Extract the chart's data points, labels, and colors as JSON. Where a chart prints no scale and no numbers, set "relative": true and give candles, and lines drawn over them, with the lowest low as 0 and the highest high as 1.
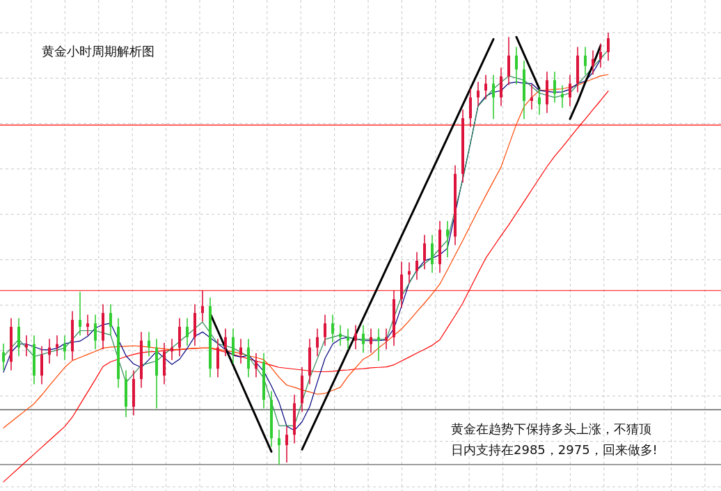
{
  "chart_data": {
    "type": "candlestick",
    "relative": true,
    "grid": true,
    "title": "黄金小时周期解析图",
    "annotations": [
      "黄金在趋势下保持多头上涨，不猜顶",
      "日内支持在2985，2975，回来做多!"
    ],
    "categories": [
      null,
      null,
      null,
      null,
      null,
      null,
      null,
      null,
      null,
      null,
      null,
      null,
      null,
      null,
      null,
      null,
      null,
      null,
      null,
      null,
      null,
      null,
      null,
      null,
      null,
      null,
      null,
      null,
      null,
      null,
      null,
      null,
      null,
      null,
      null,
      null,
      null,
      null,
      null,
      null,
      null,
      null,
      null,
      null,
      null,
      null,
      null,
      null,
      null,
      null,
      null,
      null,
      null,
      null,
      null,
      null,
      null,
      null,
      null,
      null,
      null,
      null,
      null,
      null,
      null,
      null,
      null,
      null,
      null,
      null,
      null,
      null,
      null,
      null,
      null,
      null,
      null,
      null,
      null,
      null
    ],
    "ohlc": [
      [
        0.26,
        0.28,
        0.218,
        0.238
      ],
      [
        0.238,
        0.339,
        0.218,
        0.319
      ],
      [
        0.319,
        0.339,
        0.251,
        0.271
      ],
      [
        0.271,
        0.299,
        0.251,
        0.279
      ],
      [
        0.279,
        0.299,
        0.186,
        0.206
      ],
      [
        0.206,
        0.274,
        0.186,
        0.254
      ],
      [
        0.254,
        0.291,
        0.234,
        0.271
      ],
      [
        0.271,
        0.299,
        0.251,
        0.279
      ],
      [
        0.279,
        0.299,
        0.242,
        0.262
      ],
      [
        0.262,
        0.355,
        0.242,
        0.335
      ],
      [
        0.335,
        0.4,
        0.299,
        0.319
      ],
      [
        0.319,
        0.347,
        0.299,
        0.327
      ],
      [
        0.327,
        0.347,
        0.267,
        0.287
      ],
      [
        0.287,
        0.371,
        0.267,
        0.351
      ],
      [
        0.351,
        0.371,
        0.299,
        0.319
      ],
      [
        0.319,
        0.339,
        0.178,
        0.198
      ],
      [
        0.198,
        0.218,
        0.11,
        0.134
      ],
      [
        0.134,
        0.218,
        0.114,
        0.198
      ],
      [
        0.198,
        0.307,
        0.178,
        0.287
      ],
      [
        0.287,
        0.307,
        0.251,
        0.271
      ],
      [
        0.271,
        0.291,
        0.13,
        0.206
      ],
      [
        0.206,
        0.282,
        0.186,
        0.262
      ],
      [
        0.262,
        0.291,
        0.242,
        0.271
      ],
      [
        0.271,
        0.339,
        0.251,
        0.319
      ],
      [
        0.319,
        0.339,
        0.275,
        0.295
      ],
      [
        0.295,
        0.371,
        0.275,
        0.351
      ],
      [
        0.351,
        0.403,
        0.331,
        0.367
      ],
      [
        0.367,
        0.387,
        0.202,
        0.222
      ],
      [
        0.222,
        0.291,
        0.202,
        0.271
      ],
      [
        0.271,
        0.315,
        0.251,
        0.295
      ],
      [
        0.295,
        0.315,
        0.234,
        0.254
      ],
      [
        0.254,
        0.291,
        0.234,
        0.271
      ],
      [
        0.271,
        0.291,
        0.202,
        0.222
      ],
      [
        0.222,
        0.258,
        0.202,
        0.238
      ],
      [
        0.238,
        0.258,
        0.13,
        0.15
      ],
      [
        0.15,
        0.17,
        0.041,
        0.061
      ],
      [
        0.061,
        0.081,
        0,
        0.045
      ],
      [
        0.045,
        0.089,
        0.005,
        0.069
      ],
      [
        0.069,
        0.162,
        0.049,
        0.142
      ],
      [
        0.142,
        0.226,
        0.122,
        0.206
      ],
      [
        0.206,
        0.291,
        0.186,
        0.271
      ],
      [
        0.271,
        0.315,
        0.251,
        0.295
      ],
      [
        0.295,
        0.347,
        0.275,
        0.327
      ],
      [
        0.327,
        0.347,
        0.283,
        0.303
      ],
      [
        0.303,
        0.323,
        0.275,
        0.295
      ],
      [
        0.295,
        0.315,
        0.267,
        0.287
      ],
      [
        0.287,
        0.323,
        0.267,
        0.303
      ],
      [
        0.303,
        0.323,
        0.259,
        0.279
      ],
      [
        0.279,
        0.315,
        0.259,
        0.295
      ],
      [
        0.295,
        0.315,
        0.24,
        0.287
      ],
      [
        0.287,
        0.315,
        0.267,
        0.295
      ],
      [
        0.295,
        0.403,
        0.275,
        0.383
      ],
      [
        0.383,
        0.47,
        0.363,
        0.44
      ],
      [
        0.44,
        0.468,
        0.42,
        0.448
      ],
      [
        0.448,
        0.492,
        0.428,
        0.472
      ],
      [
        0.472,
        0.532,
        0.452,
        0.512
      ],
      [
        0.512,
        0.532,
        0.444,
        0.464
      ],
      [
        0.464,
        0.564,
        0.444,
        0.544
      ],
      [
        0.544,
        0.564,
        0.48,
        0.528
      ],
      [
        0.528,
        0.693,
        0.508,
        0.673
      ],
      [
        0.673,
        0.822,
        0.653,
        0.802
      ],
      [
        0.802,
        0.87,
        0.782,
        0.85
      ],
      [
        0.85,
        0.886,
        0.83,
        0.866
      ],
      [
        0.866,
        0.902,
        0.846,
        0.882
      ],
      [
        0.882,
        0.902,
        0.8,
        0.85
      ],
      [
        0.85,
        0.919,
        0.83,
        0.899
      ],
      [
        0.899,
        0.99,
        0.879,
        0.947
      ],
      [
        0.947,
        0.967,
        0.88,
        0.915
      ],
      [
        0.915,
        0.935,
        0.8,
        0.842
      ],
      [
        0.842,
        0.88,
        0.822,
        0.85
      ],
      [
        0.85,
        0.87,
        0.81,
        0.834
      ],
      [
        0.834,
        0.91,
        0.814,
        0.89
      ],
      [
        0.89,
        0.91,
        0.838,
        0.858
      ],
      [
        0.858,
        0.878,
        0.826,
        0.85
      ],
      [
        0.85,
        0.902,
        0.83,
        0.882
      ],
      [
        0.882,
        0.967,
        0.862,
        0.947
      ],
      [
        0.947,
        0.967,
        0.903,
        0.923
      ],
      [
        0.923,
        0.959,
        0.903,
        0.939
      ],
      [
        0.939,
        0.975,
        0.919,
        0.955
      ],
      [
        0.955,
        1,
        0.935,
        0.987
      ]
    ],
    "colors": [
      "#32cd32",
      "#dc143c",
      "#32cd32",
      "#dc143c",
      "#32cd32",
      "#dc143c",
      "#dc143c",
      "#dc143c",
      "#32cd32",
      "#dc143c",
      "#32cd32",
      "#dc143c",
      "#32cd32",
      "#dc143c",
      "#32cd32",
      "#32cd32",
      "#32cd32",
      "#dc143c",
      "#dc143c",
      "#32cd32",
      "#32cd32",
      "#dc143c",
      "#dc143c",
      "#dc143c",
      "#32cd32",
      "#dc143c",
      "#dc143c",
      "#32cd32",
      "#dc143c",
      "#dc143c",
      "#32cd32",
      "#dc143c",
      "#32cd32",
      "#dc143c",
      "#32cd32",
      "#32cd32",
      "#32cd32",
      "#dc143c",
      "#dc143c",
      "#dc143c",
      "#dc143c",
      "#dc143c",
      "#dc143c",
      "#32cd32",
      "#32cd32",
      "#32cd32",
      "#dc143c",
      "#32cd32",
      "#dc143c",
      "#32cd32",
      "#dc143c",
      "#dc143c",
      "#dc143c",
      "#dc143c",
      "#dc143c",
      "#dc143c",
      "#32cd32",
      "#dc143c",
      "#32cd32",
      "#dc143c",
      "#dc143c",
      "#dc143c",
      "#dc143c",
      "#dc143c",
      "#32cd32",
      "#dc143c",
      "#dc143c",
      "#32cd32",
      "#32cd32",
      "#dc143c",
      "#32cd32",
      "#dc143c",
      "#32cd32",
      "#32cd32",
      "#dc143c",
      "#dc143c",
      "#32cd32",
      "#dc143c",
      "#dc143c",
      "#dc143c"
    ],
    "series": [
      {
        "type": "line",
        "color": "#ff0000",
        "values": [
          -0.04,
          -0.024,
          -0.008,
          0.008,
          0.024,
          0.04,
          0.056,
          0.072,
          0.088,
          0.11,
          0.139,
          0.168,
          0.197,
          0.227,
          0.238,
          0.244,
          0.25,
          0.255,
          0.259,
          0.261,
          0.262,
          0.264,
          0.265,
          0.266,
          0.268,
          0.269,
          0.27,
          0.27,
          0.265,
          0.26,
          0.255,
          0.25,
          0.245,
          0.24,
          0.235,
          0.23,
          0.225,
          0.223,
          0.221,
          0.219,
          0.217,
          0.215,
          0.215,
          0.216,
          0.218,
          0.219,
          0.221,
          0.222,
          0.224,
          0.225,
          0.226,
          0.231,
          0.24,
          0.249,
          0.258,
          0.267,
          0.276,
          0.289,
          0.317,
          0.345,
          0.374,
          0.409,
          0.444,
          0.478,
          0.504,
          0.53,
          0.555,
          0.582,
          0.609,
          0.636,
          0.663,
          0.69,
          0.714,
          0.735,
          0.757,
          0.779,
          0.8,
          0.822,
          0.843,
          0.865
        ]
      },
      {
        "type": "line",
        "color": "#ff4500",
        "values": [
          0.085,
          0.099,
          0.113,
          0.127,
          0.141,
          0.161,
          0.183,
          0.204,
          0.225,
          0.241,
          0.248,
          0.255,
          0.262,
          0.27,
          0.272,
          0.273,
          0.274,
          0.275,
          0.274,
          0.272,
          0.27,
          0.268,
          0.266,
          0.267,
          0.268,
          0.269,
          0.27,
          0.27,
          0.267,
          0.264,
          0.261,
          0.257,
          0.252,
          0.248,
          0.243,
          0.224,
          0.202,
          0.184,
          0.179,
          0.173,
          0.168,
          0.163,
          0.165,
          0.172,
          0.179,
          0.204,
          0.224,
          0.244,
          0.254,
          0.27,
          0.284,
          0.299,
          0.314,
          0.333,
          0.354,
          0.374,
          0.395,
          0.418,
          0.451,
          0.485,
          0.519,
          0.554,
          0.589,
          0.623,
          0.656,
          0.689,
          0.739,
          0.788,
          0.829,
          0.85,
          0.866,
          0.867,
          0.869,
          0.87,
          0.874,
          0.878,
          0.886,
          0.893,
          0.9,
          0.903
        ]
      },
      {
        "type": "line",
        "color": "#000080",
        "values": [
          0.214,
          0.26,
          0.279,
          0.279,
          0.273,
          0.266,
          0.266,
          0.269,
          0.28,
          0.283,
          0.286,
          0.297,
          0.316,
          0.324,
          0.327,
          null,
          0.252,
          0.233,
          0.225,
          0.243,
          0.262,
          0.247,
          0.232,
          0.244,
          0.269,
          0.297,
          0.307,
          0.294,
          0.28,
          0.266,
          0.253,
          0.249,
          0.253,
          0.236,
          0.216,
          0.182,
          0.144,
          0.089,
          0.079,
          0.099,
          0.134,
          0.191,
          0.246,
          0.279,
          0.291,
          0.295,
          0.291,
          0.287,
          0.287,
          0.287,
          0.289,
          0.315,
          0.367,
          0.421,
          0.45,
          0.472,
          0.478,
          0.486,
          0.501,
          null,
          null,
          0.744,
          0.831,
          0.853,
          0.862,
          0.866,
          0.883,
          0.886,
          0.883,
          0.882,
          0.866,
          0.864,
          0.862,
          0.863,
          0.869,
          0.882,
          0.888,
          0.908,
          0.938,
          null
        ]
      },
      {
        "type": "line",
        "color": "#2e8b57",
        "values": [
          0.25,
          0.27,
          0.29,
          0.27,
          0.25,
          0.255,
          0.26,
          0.265,
          0.27,
          0.29,
          0.31,
          0.31,
          0.31,
          0.305,
          0.3,
          null,
          0.19,
          0.21,
          0.23,
          0.235,
          0.24,
          0.255,
          0.27,
          0.285,
          0.3,
          0.315,
          0.33,
          0.305,
          0.28,
          0.275,
          0.27,
          0.26,
          0.25,
          0.225,
          0.2,
          0.145,
          0.09,
          0.09,
          0.09,
          0.145,
          0.2,
          0.245,
          0.29,
          0.295,
          0.3,
          0.295,
          0.29,
          0.29,
          0.29,
          0.29,
          0.29,
          null,
          0.39,
          0.42,
          0.45,
          0.465,
          0.48,
          0.5,
          0.52,
          null,
          0.66,
          0.745,
          0.83,
          0.85,
          0.87,
          0.885,
          0.9,
          0.895,
          0.89,
          0.875,
          0.86,
          0.855,
          0.85,
          0.855,
          0.86,
          0.88,
          0.9,
          0.92,
          0.94,
          0.96
        ]
      },
      {
        "type": "line",
        "color": "#000000",
        "values": [
          null,
          null,
          null,
          null,
          null,
          null,
          null,
          null,
          null,
          null,
          null,
          null,
          null,
          null,
          null,
          null,
          null,
          null,
          null,
          null,
          null,
          null,
          null,
          null,
          null,
          null,
          null,
          0.35,
          0.31,
          0.27,
          0.23,
          0.19,
          0.15,
          0.11,
          0.07,
          0.03,
          null,
          null,
          null,
          null,
          null,
          null,
          null,
          null,
          null,
          null,
          null,
          null,
          null,
          null,
          null,
          null,
          null,
          null,
          null,
          null,
          null,
          null,
          null,
          null,
          null,
          null,
          null,
          null,
          null,
          null,
          null,
          null,
          null,
          null,
          null,
          null,
          null,
          null,
          null,
          null,
          null,
          null,
          null,
          null
        ]
      },
      {
        "type": "line",
        "color": "#000000",
        "values": [
          null,
          null,
          null,
          null,
          null,
          null,
          null,
          null,
          null,
          null,
          null,
          null,
          null,
          null,
          null,
          null,
          null,
          null,
          null,
          null,
          null,
          null,
          null,
          null,
          null,
          null,
          null,
          null,
          null,
          null,
          null,
          null,
          null,
          null,
          null,
          null,
          null,
          null,
          null,
          0.035,
          0.073,
          0.111,
          0.149,
          0.187,
          0.225,
          0.263,
          0.301,
          0.339,
          0.377,
          0.415,
          0.453,
          0.491,
          0.529,
          0.567,
          0.605,
          0.643,
          0.681,
          0.719,
          0.757,
          0.795,
          0.833,
          0.871,
          0.909,
          0.947,
          0.985,
          null,
          null,
          null,
          null,
          null,
          null,
          null,
          null,
          null,
          null,
          null,
          null,
          null,
          null,
          null
        ]
      },
      {
        "type": "line",
        "color": "#000000",
        "values": [
          null,
          null,
          null,
          null,
          null,
          null,
          null,
          null,
          null,
          null,
          null,
          null,
          null,
          null,
          null,
          null,
          null,
          null,
          null,
          null,
          null,
          null,
          null,
          null,
          null,
          null,
          null,
          null,
          null,
          null,
          null,
          null,
          null,
          null,
          null,
          null,
          null,
          null,
          null,
          null,
          null,
          null,
          null,
          null,
          null,
          null,
          null,
          null,
          null,
          null,
          null,
          null,
          null,
          null,
          null,
          null,
          null,
          null,
          null,
          null,
          null,
          null,
          null,
          null,
          null,
          null,
          null,
          0.99,
          0.95,
          0.91,
          0.87,
          null,
          null,
          null,
          null,
          null,
          null,
          null,
          null,
          null
        ]
      },
      {
        "type": "line",
        "color": "#000000",
        "values": [
          null,
          null,
          null,
          null,
          null,
          null,
          null,
          null,
          null,
          null,
          null,
          null,
          null,
          null,
          null,
          null,
          null,
          null,
          null,
          null,
          null,
          null,
          null,
          null,
          null,
          null,
          null,
          null,
          null,
          null,
          null,
          null,
          null,
          null,
          null,
          null,
          null,
          null,
          null,
          null,
          null,
          null,
          null,
          null,
          null,
          null,
          null,
          null,
          null,
          null,
          null,
          null,
          null,
          null,
          null,
          null,
          null,
          null,
          null,
          null,
          null,
          null,
          null,
          null,
          null,
          null,
          null,
          null,
          null,
          null,
          null,
          null,
          null,
          null,
          0.8,
          0.84,
          0.885,
          0.925,
          0.97,
          null
        ]
      }
    ],
    "ref_lines": [
      {
        "axis": "y",
        "value": 0.786,
        "color": "#ff0000"
      },
      {
        "axis": "y",
        "value": 0.403,
        "color": "#ff0000"
      },
      {
        "axis": "y",
        "value": 0.127,
        "color": "#404040"
      },
      {
        "axis": "y",
        "value": 0,
        "color": "#404040"
      }
    ]
  }
}
